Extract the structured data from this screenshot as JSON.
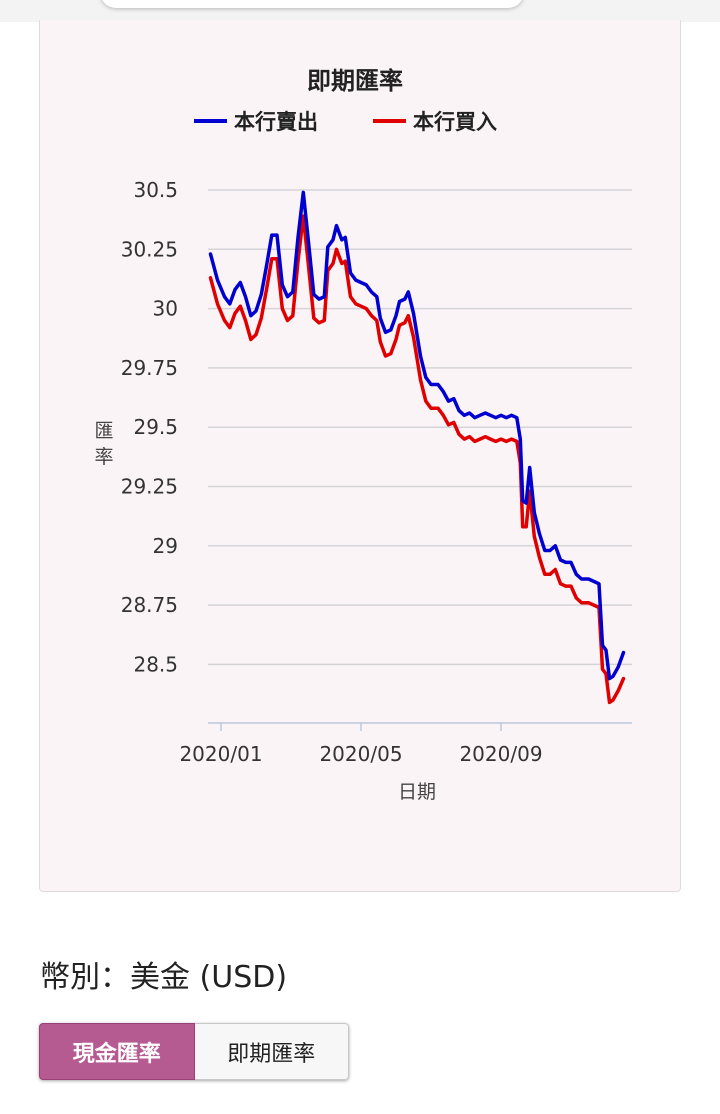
{
  "chart_data": {
    "type": "line",
    "title": "即期匯率",
    "xlabel": "日期",
    "ylabel": "匯率",
    "x_ticks": [
      "2020/01",
      "2020/05",
      "2020/09"
    ],
    "y_ticks": [
      "30.5",
      "30.25",
      "30",
      "29.75",
      "29.5",
      "29.25",
      "29",
      "28.75",
      "28.5"
    ],
    "ylim": [
      28.25,
      30.5
    ],
    "legend_position": "top-center",
    "grid": true,
    "series": [
      {
        "name": "本行賣出",
        "color": "#0000d0",
        "points": [
          [
            -0.3,
            30.23
          ],
          [
            -0.1,
            30.12
          ],
          [
            0.1,
            30.05
          ],
          [
            0.25,
            30.02
          ],
          [
            0.4,
            30.08
          ],
          [
            0.55,
            30.11
          ],
          [
            0.7,
            30.05
          ],
          [
            0.85,
            29.97
          ],
          [
            1.0,
            29.99
          ],
          [
            1.15,
            30.06
          ],
          [
            1.3,
            30.18
          ],
          [
            1.45,
            30.31
          ],
          [
            1.6,
            30.31
          ],
          [
            1.75,
            30.1
          ],
          [
            1.9,
            30.05
          ],
          [
            2.05,
            30.07
          ],
          [
            2.2,
            30.3
          ],
          [
            2.35,
            30.49
          ],
          [
            2.5,
            30.28
          ],
          [
            2.65,
            30.06
          ],
          [
            2.8,
            30.04
          ],
          [
            2.95,
            30.05
          ],
          [
            3.05,
            30.26
          ],
          [
            3.2,
            30.29
          ],
          [
            3.3,
            30.35
          ],
          [
            3.45,
            30.29
          ],
          [
            3.55,
            30.3
          ],
          [
            3.7,
            30.15
          ],
          [
            3.85,
            30.12
          ],
          [
            4.0,
            30.11
          ],
          [
            4.15,
            30.1
          ],
          [
            4.3,
            30.07
          ],
          [
            4.45,
            30.05
          ],
          [
            4.55,
            29.96
          ],
          [
            4.7,
            29.9
          ],
          [
            4.85,
            29.91
          ],
          [
            5.0,
            29.97
          ],
          [
            5.1,
            30.03
          ],
          [
            5.25,
            30.04
          ],
          [
            5.35,
            30.07
          ],
          [
            5.5,
            29.98
          ],
          [
            5.6,
            29.89
          ],
          [
            5.7,
            29.8
          ],
          [
            5.85,
            29.71
          ],
          [
            6.0,
            29.68
          ],
          [
            6.2,
            29.68
          ],
          [
            6.35,
            29.65
          ],
          [
            6.5,
            29.61
          ],
          [
            6.65,
            29.62
          ],
          [
            6.8,
            29.57
          ],
          [
            6.95,
            29.55
          ],
          [
            7.1,
            29.56
          ],
          [
            7.25,
            29.54
          ],
          [
            7.4,
            29.55
          ],
          [
            7.55,
            29.56
          ],
          [
            7.7,
            29.55
          ],
          [
            7.85,
            29.54
          ],
          [
            8.0,
            29.55
          ],
          [
            8.15,
            29.54
          ],
          [
            8.3,
            29.55
          ],
          [
            8.45,
            29.54
          ],
          [
            8.55,
            29.45
          ],
          [
            8.62,
            29.19
          ],
          [
            8.72,
            29.18
          ],
          [
            8.82,
            29.33
          ],
          [
            8.95,
            29.14
          ],
          [
            9.1,
            29.05
          ],
          [
            9.25,
            28.98
          ],
          [
            9.4,
            28.98
          ],
          [
            9.55,
            29.0
          ],
          [
            9.7,
            28.94
          ],
          [
            9.85,
            28.93
          ],
          [
            10.0,
            28.93
          ],
          [
            10.15,
            28.88
          ],
          [
            10.3,
            28.86
          ],
          [
            10.5,
            28.86
          ],
          [
            10.65,
            28.85
          ],
          [
            10.8,
            28.84
          ],
          [
            10.9,
            28.58
          ],
          [
            11.0,
            28.56
          ],
          [
            11.1,
            28.44
          ],
          [
            11.2,
            28.45
          ],
          [
            11.35,
            28.49
          ],
          [
            11.5,
            28.55
          ]
        ]
      },
      {
        "name": "本行買入",
        "color": "#e00000",
        "points": [
          [
            -0.3,
            30.13
          ],
          [
            -0.1,
            30.02
          ],
          [
            0.1,
            29.95
          ],
          [
            0.25,
            29.92
          ],
          [
            0.4,
            29.98
          ],
          [
            0.55,
            30.01
          ],
          [
            0.7,
            29.95
          ],
          [
            0.85,
            29.87
          ],
          [
            1.0,
            29.89
          ],
          [
            1.15,
            29.96
          ],
          [
            1.3,
            30.08
          ],
          [
            1.45,
            30.21
          ],
          [
            1.6,
            30.21
          ],
          [
            1.75,
            30.0
          ],
          [
            1.9,
            29.95
          ],
          [
            2.05,
            29.97
          ],
          [
            2.2,
            30.2
          ],
          [
            2.35,
            30.39
          ],
          [
            2.5,
            30.18
          ],
          [
            2.65,
            29.96
          ],
          [
            2.8,
            29.94
          ],
          [
            2.95,
            29.95
          ],
          [
            3.05,
            30.16
          ],
          [
            3.2,
            30.19
          ],
          [
            3.3,
            30.25
          ],
          [
            3.45,
            30.19
          ],
          [
            3.55,
            30.2
          ],
          [
            3.7,
            30.05
          ],
          [
            3.85,
            30.02
          ],
          [
            4.0,
            30.01
          ],
          [
            4.15,
            30.0
          ],
          [
            4.3,
            29.97
          ],
          [
            4.45,
            29.95
          ],
          [
            4.55,
            29.86
          ],
          [
            4.7,
            29.8
          ],
          [
            4.85,
            29.81
          ],
          [
            5.0,
            29.87
          ],
          [
            5.1,
            29.93
          ],
          [
            5.25,
            29.94
          ],
          [
            5.35,
            29.97
          ],
          [
            5.5,
            29.88
          ],
          [
            5.6,
            29.79
          ],
          [
            5.7,
            29.7
          ],
          [
            5.85,
            29.61
          ],
          [
            6.0,
            29.58
          ],
          [
            6.2,
            29.58
          ],
          [
            6.35,
            29.55
          ],
          [
            6.5,
            29.51
          ],
          [
            6.65,
            29.52
          ],
          [
            6.8,
            29.47
          ],
          [
            6.95,
            29.45
          ],
          [
            7.1,
            29.46
          ],
          [
            7.25,
            29.44
          ],
          [
            7.4,
            29.45
          ],
          [
            7.55,
            29.46
          ],
          [
            7.7,
            29.45
          ],
          [
            7.85,
            29.44
          ],
          [
            8.0,
            29.45
          ],
          [
            8.15,
            29.44
          ],
          [
            8.3,
            29.45
          ],
          [
            8.45,
            29.44
          ],
          [
            8.55,
            29.35
          ],
          [
            8.62,
            29.08
          ],
          [
            8.72,
            29.08
          ],
          [
            8.82,
            29.23
          ],
          [
            8.95,
            29.04
          ],
          [
            9.1,
            28.95
          ],
          [
            9.25,
            28.88
          ],
          [
            9.4,
            28.88
          ],
          [
            9.55,
            28.9
          ],
          [
            9.7,
            28.84
          ],
          [
            9.85,
            28.83
          ],
          [
            10.0,
            28.83
          ],
          [
            10.15,
            28.78
          ],
          [
            10.3,
            28.76
          ],
          [
            10.5,
            28.76
          ],
          [
            10.65,
            28.75
          ],
          [
            10.8,
            28.74
          ],
          [
            10.9,
            28.48
          ],
          [
            11.0,
            28.46
          ],
          [
            11.1,
            28.34
          ],
          [
            11.2,
            28.35
          ],
          [
            11.35,
            28.39
          ],
          [
            11.5,
            28.44
          ]
        ]
      }
    ]
  },
  "currency_label": "幣別：美金 (USD)",
  "tabs": [
    {
      "label": "現金匯率",
      "active": true
    },
    {
      "label": "即期匯率",
      "active": false
    }
  ]
}
